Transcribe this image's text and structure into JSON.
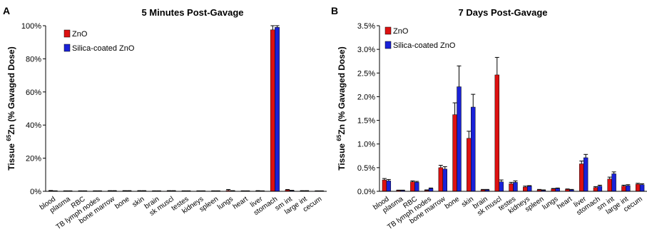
{
  "colors": {
    "zno": "#dd1111",
    "silica": "#1a22d8"
  },
  "chart_data": [
    {
      "type": "bar",
      "panel": "A",
      "title": "5 Minutes Post-Gavage",
      "ylabel_main": "Tissue ",
      "ylabel_sup": "65",
      "ylabel_rest": "Zn (% Gavaged Dose)",
      "ylim": [
        0,
        100
      ],
      "yticks": [
        0,
        20,
        40,
        60,
        80,
        100
      ],
      "ytick_labels": [
        "0%",
        "20%",
        "40%",
        "60%",
        "80%",
        "100%"
      ],
      "legend": "top-left",
      "categories": [
        "blood",
        "plasma",
        "RBC",
        "TB lymph nodes",
        "bone marrow",
        "bone",
        "skin",
        "brain",
        "sk muscl",
        "testes",
        "kidneys",
        "spleen",
        "lungs",
        "heart",
        "liver",
        "stomach",
        "sm int",
        "large int",
        "cecum"
      ],
      "series": [
        {
          "name": "ZnO",
          "values": [
            0.3,
            0.2,
            0.2,
            0.2,
            0.3,
            0.3,
            0.3,
            0.2,
            0.3,
            0.2,
            0.2,
            0.2,
            0.5,
            0.2,
            0.3,
            97.5,
            0.8,
            0.3,
            0.2
          ],
          "errors": [
            0.2,
            0.1,
            0.1,
            0.1,
            0.1,
            0.1,
            0.1,
            0.1,
            0.1,
            0.1,
            0.1,
            0.1,
            0.6,
            0.1,
            0.1,
            4.5,
            0.3,
            0.1,
            0.1
          ]
        },
        {
          "name": "Silica-coated ZnO",
          "values": [
            0.2,
            0.2,
            0.2,
            0.2,
            0.3,
            0.3,
            0.3,
            0.2,
            0.3,
            0.2,
            0.2,
            0.2,
            0.3,
            0.2,
            0.2,
            99.0,
            0.4,
            0.3,
            0.2
          ],
          "errors": [
            0.1,
            0.1,
            0.1,
            0.1,
            0.1,
            0.1,
            0.1,
            0.1,
            0.1,
            0.1,
            0.1,
            0.1,
            0.1,
            0.1,
            0.1,
            2.3,
            0.2,
            0.1,
            0.1
          ]
        }
      ]
    },
    {
      "type": "bar",
      "panel": "B",
      "title": "7 Days Post-Gavage",
      "ylabel_main": "Tissue ",
      "ylabel_sup": "65",
      "ylabel_rest": "Zn (% Gavaged Dose)",
      "ylim": [
        0,
        3.5
      ],
      "yticks": [
        0,
        0.5,
        1.0,
        1.5,
        2.0,
        2.5,
        3.0,
        3.5
      ],
      "ytick_labels": [
        "0.0%",
        "0.5%",
        "1.0%",
        "1.5%",
        "2.0%",
        "2.5%",
        "3.0%",
        "3.5%"
      ],
      "legend": "top-left",
      "categories": [
        "blood",
        "plasma",
        "RBC",
        "TB lymph nodes",
        "bone marrow",
        "bone",
        "skin",
        "brain",
        "sk muscl",
        "testes",
        "kidneys",
        "spleen",
        "lungs",
        "heart",
        "liver",
        "stomach",
        "sm int",
        "large int",
        "cecum"
      ],
      "series": [
        {
          "name": "ZnO",
          "values": [
            0.24,
            0.02,
            0.2,
            0.02,
            0.5,
            1.62,
            1.12,
            0.03,
            2.46,
            0.16,
            0.09,
            0.03,
            0.05,
            0.04,
            0.58,
            0.08,
            0.26,
            0.11,
            0.15
          ],
          "errors": [
            0.03,
            0.005,
            0.02,
            0.01,
            0.05,
            0.25,
            0.15,
            0.01,
            0.37,
            0.03,
            0.02,
            0.01,
            0.01,
            0.01,
            0.06,
            0.02,
            0.04,
            0.02,
            0.02
          ]
        },
        {
          "name": "Silica-coated ZnO",
          "values": [
            0.22,
            0.02,
            0.19,
            0.06,
            0.47,
            2.21,
            1.78,
            0.03,
            0.2,
            0.19,
            0.11,
            0.02,
            0.06,
            0.03,
            0.71,
            0.11,
            0.37,
            0.12,
            0.14
          ],
          "errors": [
            0.03,
            0.005,
            0.02,
            0.01,
            0.05,
            0.44,
            0.27,
            0.01,
            0.04,
            0.03,
            0.01,
            0.01,
            0.01,
            0.01,
            0.07,
            0.02,
            0.04,
            0.02,
            0.02
          ]
        }
      ]
    }
  ]
}
